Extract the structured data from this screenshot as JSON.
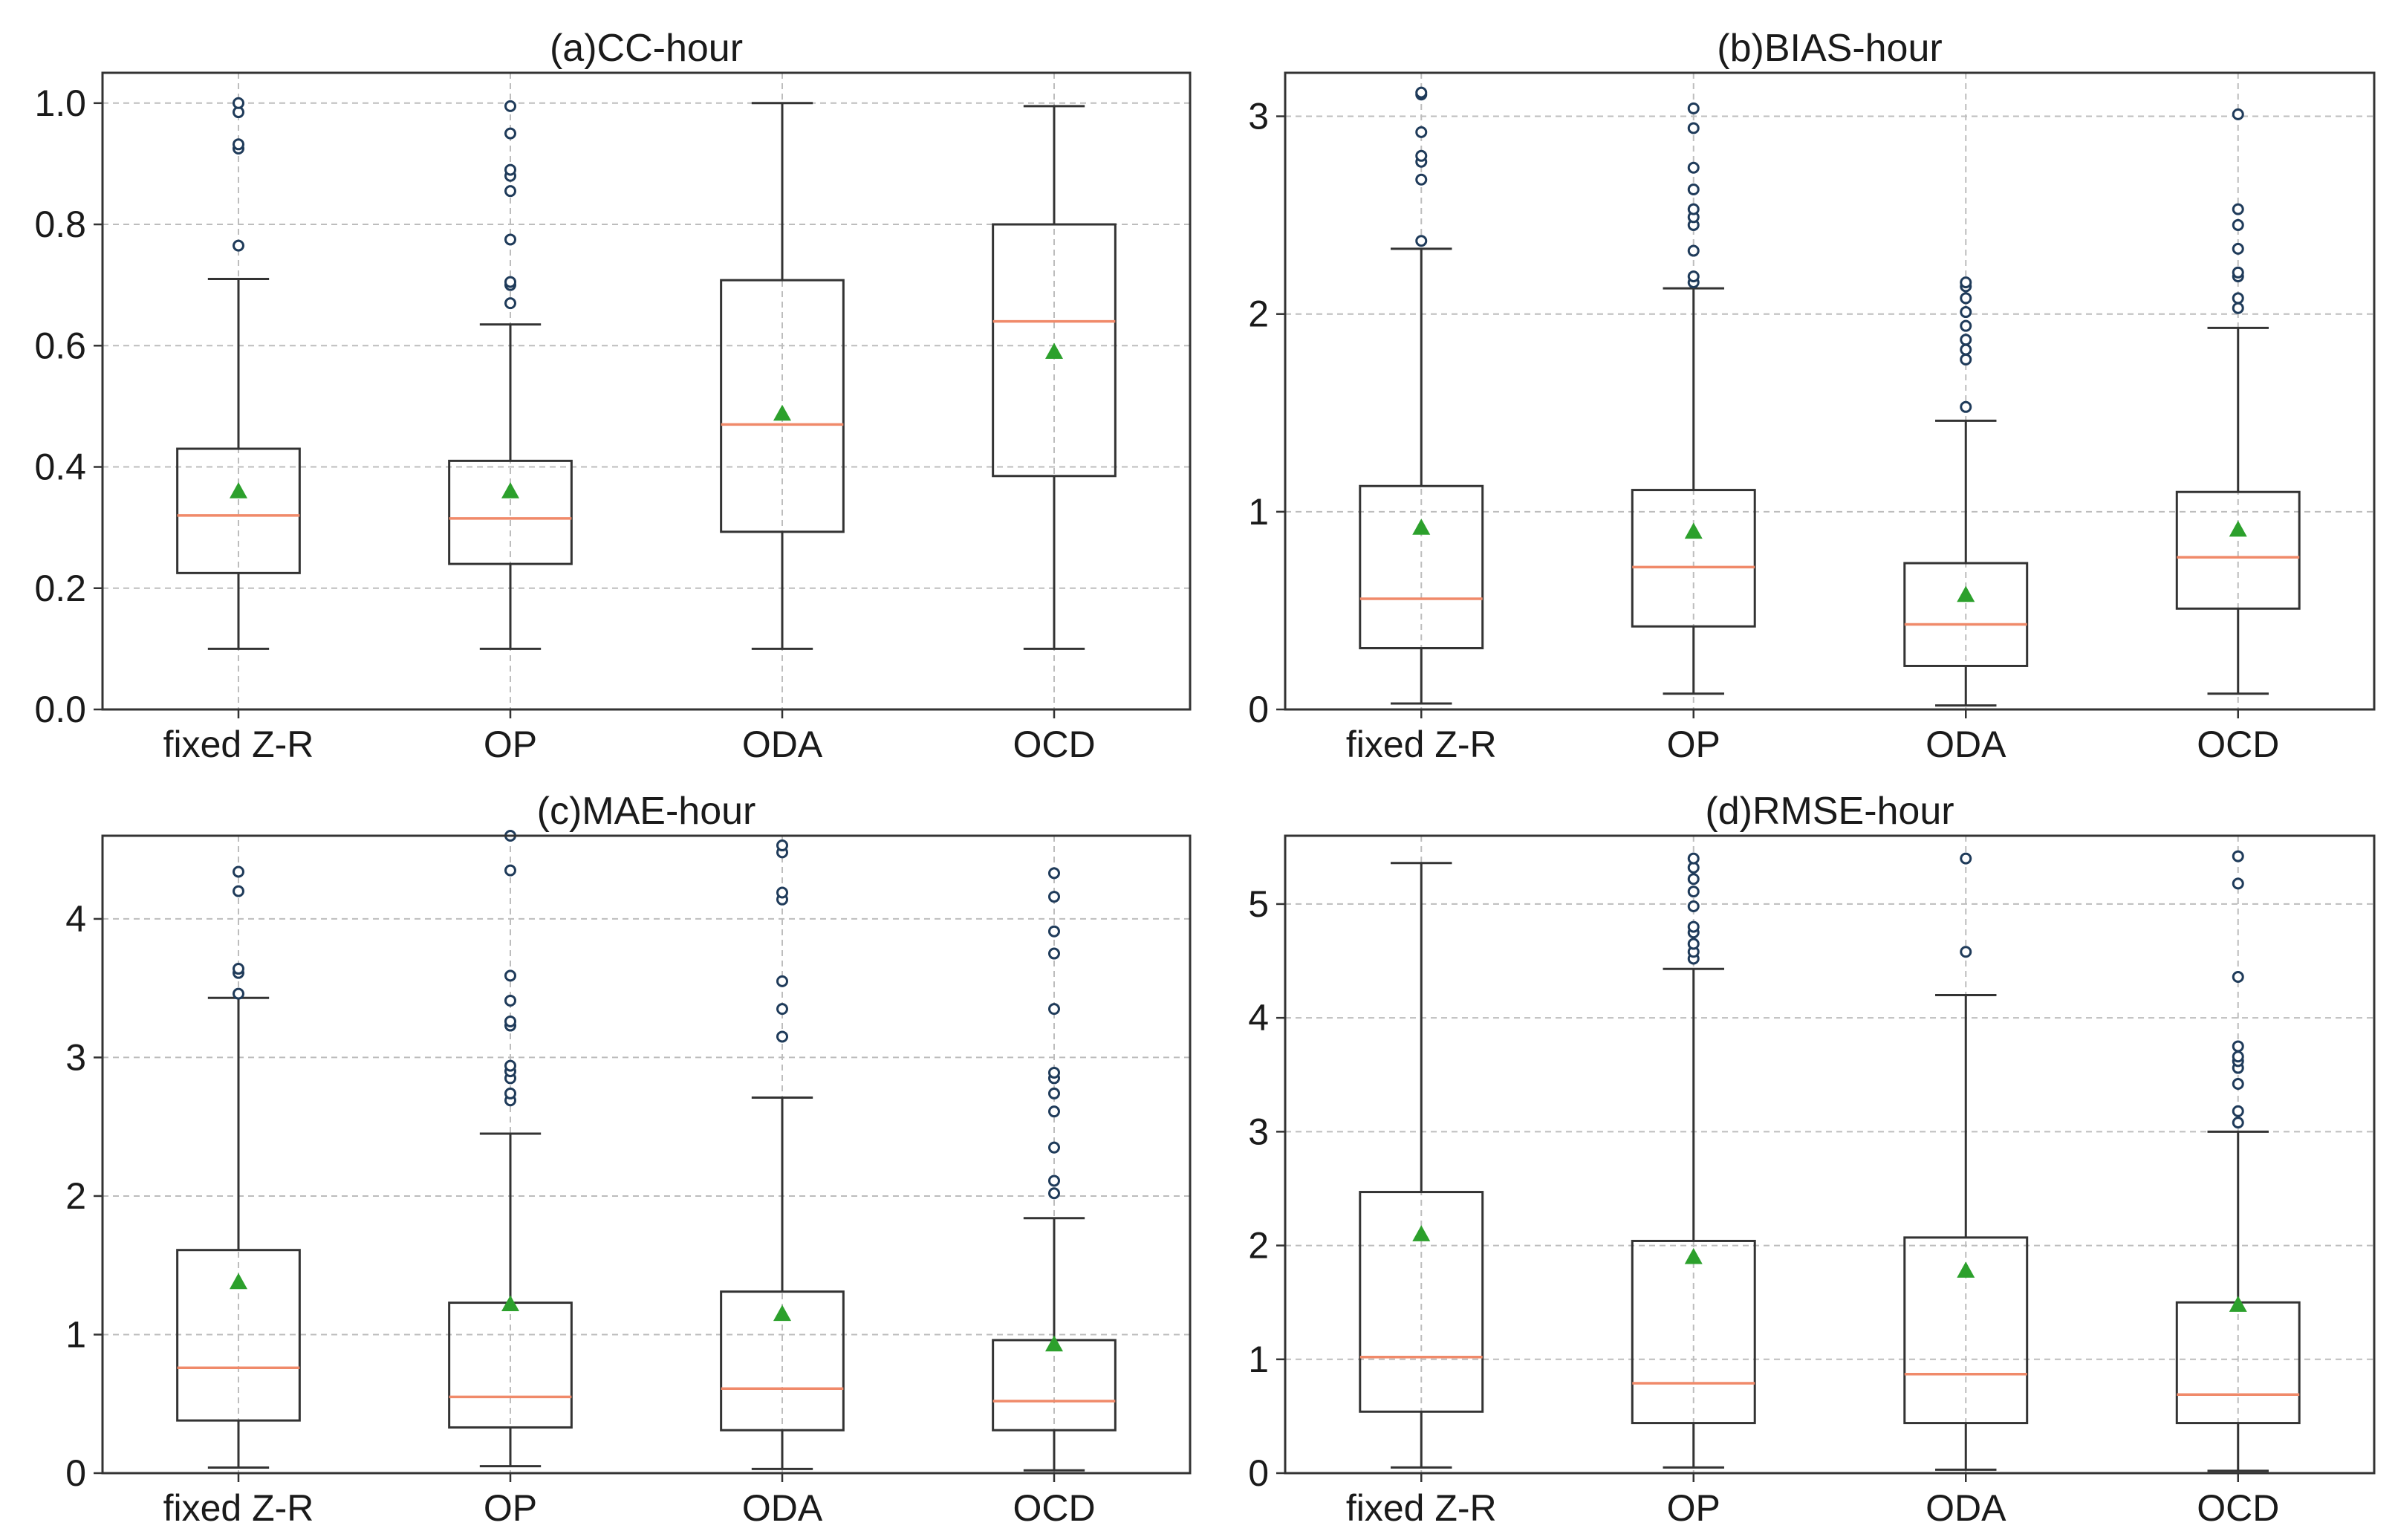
{
  "chart_data": [
    {
      "id": "a",
      "type": "box",
      "title": "(a)CC-hour",
      "categories": [
        "fixed Z-R",
        "OP",
        "ODA",
        "OCD"
      ],
      "ylim": [
        0,
        1.05
      ],
      "yticks": [
        "0.0",
        "0.2",
        "0.4",
        "0.6",
        "0.8",
        "1.0"
      ],
      "grid": true,
      "boxes": [
        {
          "label": "fixed Z-R",
          "whisker_low": 0.1,
          "q1": 0.225,
          "median": 0.32,
          "q3": 0.43,
          "whisker_high": 0.71,
          "mean": 0.36,
          "outliers": [
            0.765,
            0.925,
            0.932,
            0.985,
            1.0
          ]
        },
        {
          "label": "OP",
          "whisker_low": 0.1,
          "q1": 0.24,
          "median": 0.315,
          "q3": 0.41,
          "whisker_high": 0.635,
          "mean": 0.36,
          "outliers": [
            0.67,
            0.7,
            0.705,
            0.775,
            0.855,
            0.88,
            0.89,
            0.95,
            0.995
          ]
        },
        {
          "label": "ODA",
          "whisker_low": 0.1,
          "q1": 0.293,
          "median": 0.47,
          "q3": 0.708,
          "whisker_high": 1.0,
          "mean": 0.488,
          "outliers": []
        },
        {
          "label": "OCD",
          "whisker_low": 0.1,
          "q1": 0.385,
          "median": 0.64,
          "q3": 0.8,
          "whisker_high": 0.995,
          "mean": 0.59,
          "outliers": []
        }
      ]
    },
    {
      "id": "b",
      "type": "box",
      "title": "(b)BIAS-hour",
      "categories": [
        "fixed Z-R",
        "OP",
        "ODA",
        "OCD"
      ],
      "ylim": [
        0,
        3.22
      ],
      "yticks": [
        "0",
        "1",
        "2",
        "3"
      ],
      "grid": true,
      "boxes": [
        {
          "label": "fixed Z-R",
          "whisker_low": 0.03,
          "q1": 0.31,
          "median": 0.56,
          "q3": 1.13,
          "whisker_high": 2.33,
          "mean": 0.92,
          "outliers": [
            2.37,
            2.68,
            2.77,
            2.8,
            2.92,
            3.11,
            3.12
          ]
        },
        {
          "label": "OP",
          "whisker_low": 0.08,
          "q1": 0.42,
          "median": 0.72,
          "q3": 1.11,
          "whisker_high": 2.13,
          "mean": 0.9,
          "outliers": [
            2.16,
            2.19,
            2.32,
            2.45,
            2.49,
            2.53,
            2.63,
            2.74,
            2.94,
            3.04
          ]
        },
        {
          "label": "ODA",
          "whisker_low": 0.02,
          "q1": 0.22,
          "median": 0.43,
          "q3": 0.74,
          "whisker_high": 1.46,
          "mean": 0.58,
          "outliers": [
            1.53,
            1.77,
            1.82,
            1.87,
            1.94,
            2.01,
            2.08,
            2.14,
            2.16
          ]
        },
        {
          "label": "OCD",
          "whisker_low": 0.08,
          "q1": 0.51,
          "median": 0.77,
          "q3": 1.1,
          "whisker_high": 1.93,
          "mean": 0.91,
          "outliers": [
            2.03,
            2.08,
            2.19,
            2.21,
            2.33,
            2.45,
            2.53,
            3.01
          ]
        }
      ]
    },
    {
      "id": "c",
      "type": "box",
      "title": "(c)MAE-hour",
      "categories": [
        "fixed Z-R",
        "OP",
        "ODA",
        "OCD"
      ],
      "ylim": [
        0,
        4.6
      ],
      "yticks": [
        "0",
        "1",
        "2",
        "3",
        "4"
      ],
      "grid": true,
      "boxes": [
        {
          "label": "fixed Z-R",
          "whisker_low": 0.04,
          "q1": 0.38,
          "median": 0.76,
          "q3": 1.61,
          "whisker_high": 3.43,
          "mean": 1.38,
          "outliers": [
            3.46,
            3.61,
            3.64,
            4.2,
            4.34
          ]
        },
        {
          "label": "OP",
          "whisker_low": 0.05,
          "q1": 0.33,
          "median": 0.55,
          "q3": 1.23,
          "whisker_high": 2.45,
          "mean": 1.22,
          "outliers": [
            2.69,
            2.74,
            2.85,
            2.9,
            2.94,
            3.23,
            3.26,
            3.41,
            3.59,
            4.35,
            4.6
          ]
        },
        {
          "label": "ODA",
          "whisker_low": 0.03,
          "q1": 0.31,
          "median": 0.61,
          "q3": 1.31,
          "whisker_high": 2.71,
          "mean": 1.15,
          "outliers": [
            3.15,
            3.35,
            3.55,
            4.14,
            4.19,
            4.48,
            4.53
          ]
        },
        {
          "label": "OCD",
          "whisker_low": 0.02,
          "q1": 0.31,
          "median": 0.52,
          "q3": 0.96,
          "whisker_high": 1.84,
          "mean": 0.93,
          "outliers": [
            2.02,
            2.11,
            2.35,
            2.61,
            2.74,
            2.85,
            2.89,
            3.35,
            3.75,
            3.91,
            4.16,
            4.33
          ]
        }
      ]
    },
    {
      "id": "d",
      "type": "box",
      "title": "(d)RMSE-hour",
      "categories": [
        "fixed Z-R",
        "OP",
        "ODA",
        "OCD"
      ],
      "ylim": [
        0,
        5.6
      ],
      "yticks": [
        "0",
        "1",
        "2",
        "3",
        "4",
        "5"
      ],
      "grid": true,
      "boxes": [
        {
          "label": "fixed Z-R",
          "whisker_low": 0.05,
          "q1": 0.54,
          "median": 1.02,
          "q3": 2.47,
          "whisker_high": 5.36,
          "mean": 2.1,
          "outliers": []
        },
        {
          "label": "OP",
          "whisker_low": 0.05,
          "q1": 0.44,
          "median": 0.79,
          "q3": 2.04,
          "whisker_high": 4.43,
          "mean": 1.9,
          "outliers": [
            4.52,
            4.58,
            4.65,
            4.75,
            4.8,
            4.98,
            5.11,
            5.22,
            5.32,
            5.4
          ]
        },
        {
          "label": "ODA",
          "whisker_low": 0.03,
          "q1": 0.44,
          "median": 0.87,
          "q3": 2.07,
          "whisker_high": 4.2,
          "mean": 1.78,
          "outliers": [
            4.58,
            5.4
          ]
        },
        {
          "label": "OCD",
          "whisker_low": 0.02,
          "q1": 0.44,
          "median": 0.69,
          "q3": 1.5,
          "whisker_high": 3.0,
          "mean": 1.48,
          "outliers": [
            3.08,
            3.18,
            3.42,
            3.56,
            3.62,
            3.66,
            3.75,
            4.36,
            5.18,
            5.42
          ]
        }
      ]
    }
  ],
  "colors": {
    "box": "#333333",
    "median": "#f08a6a",
    "mean": "#2ca02c",
    "outlier": "#1f3b5a",
    "grid": "#bdbdbd",
    "frame": "#333333"
  }
}
